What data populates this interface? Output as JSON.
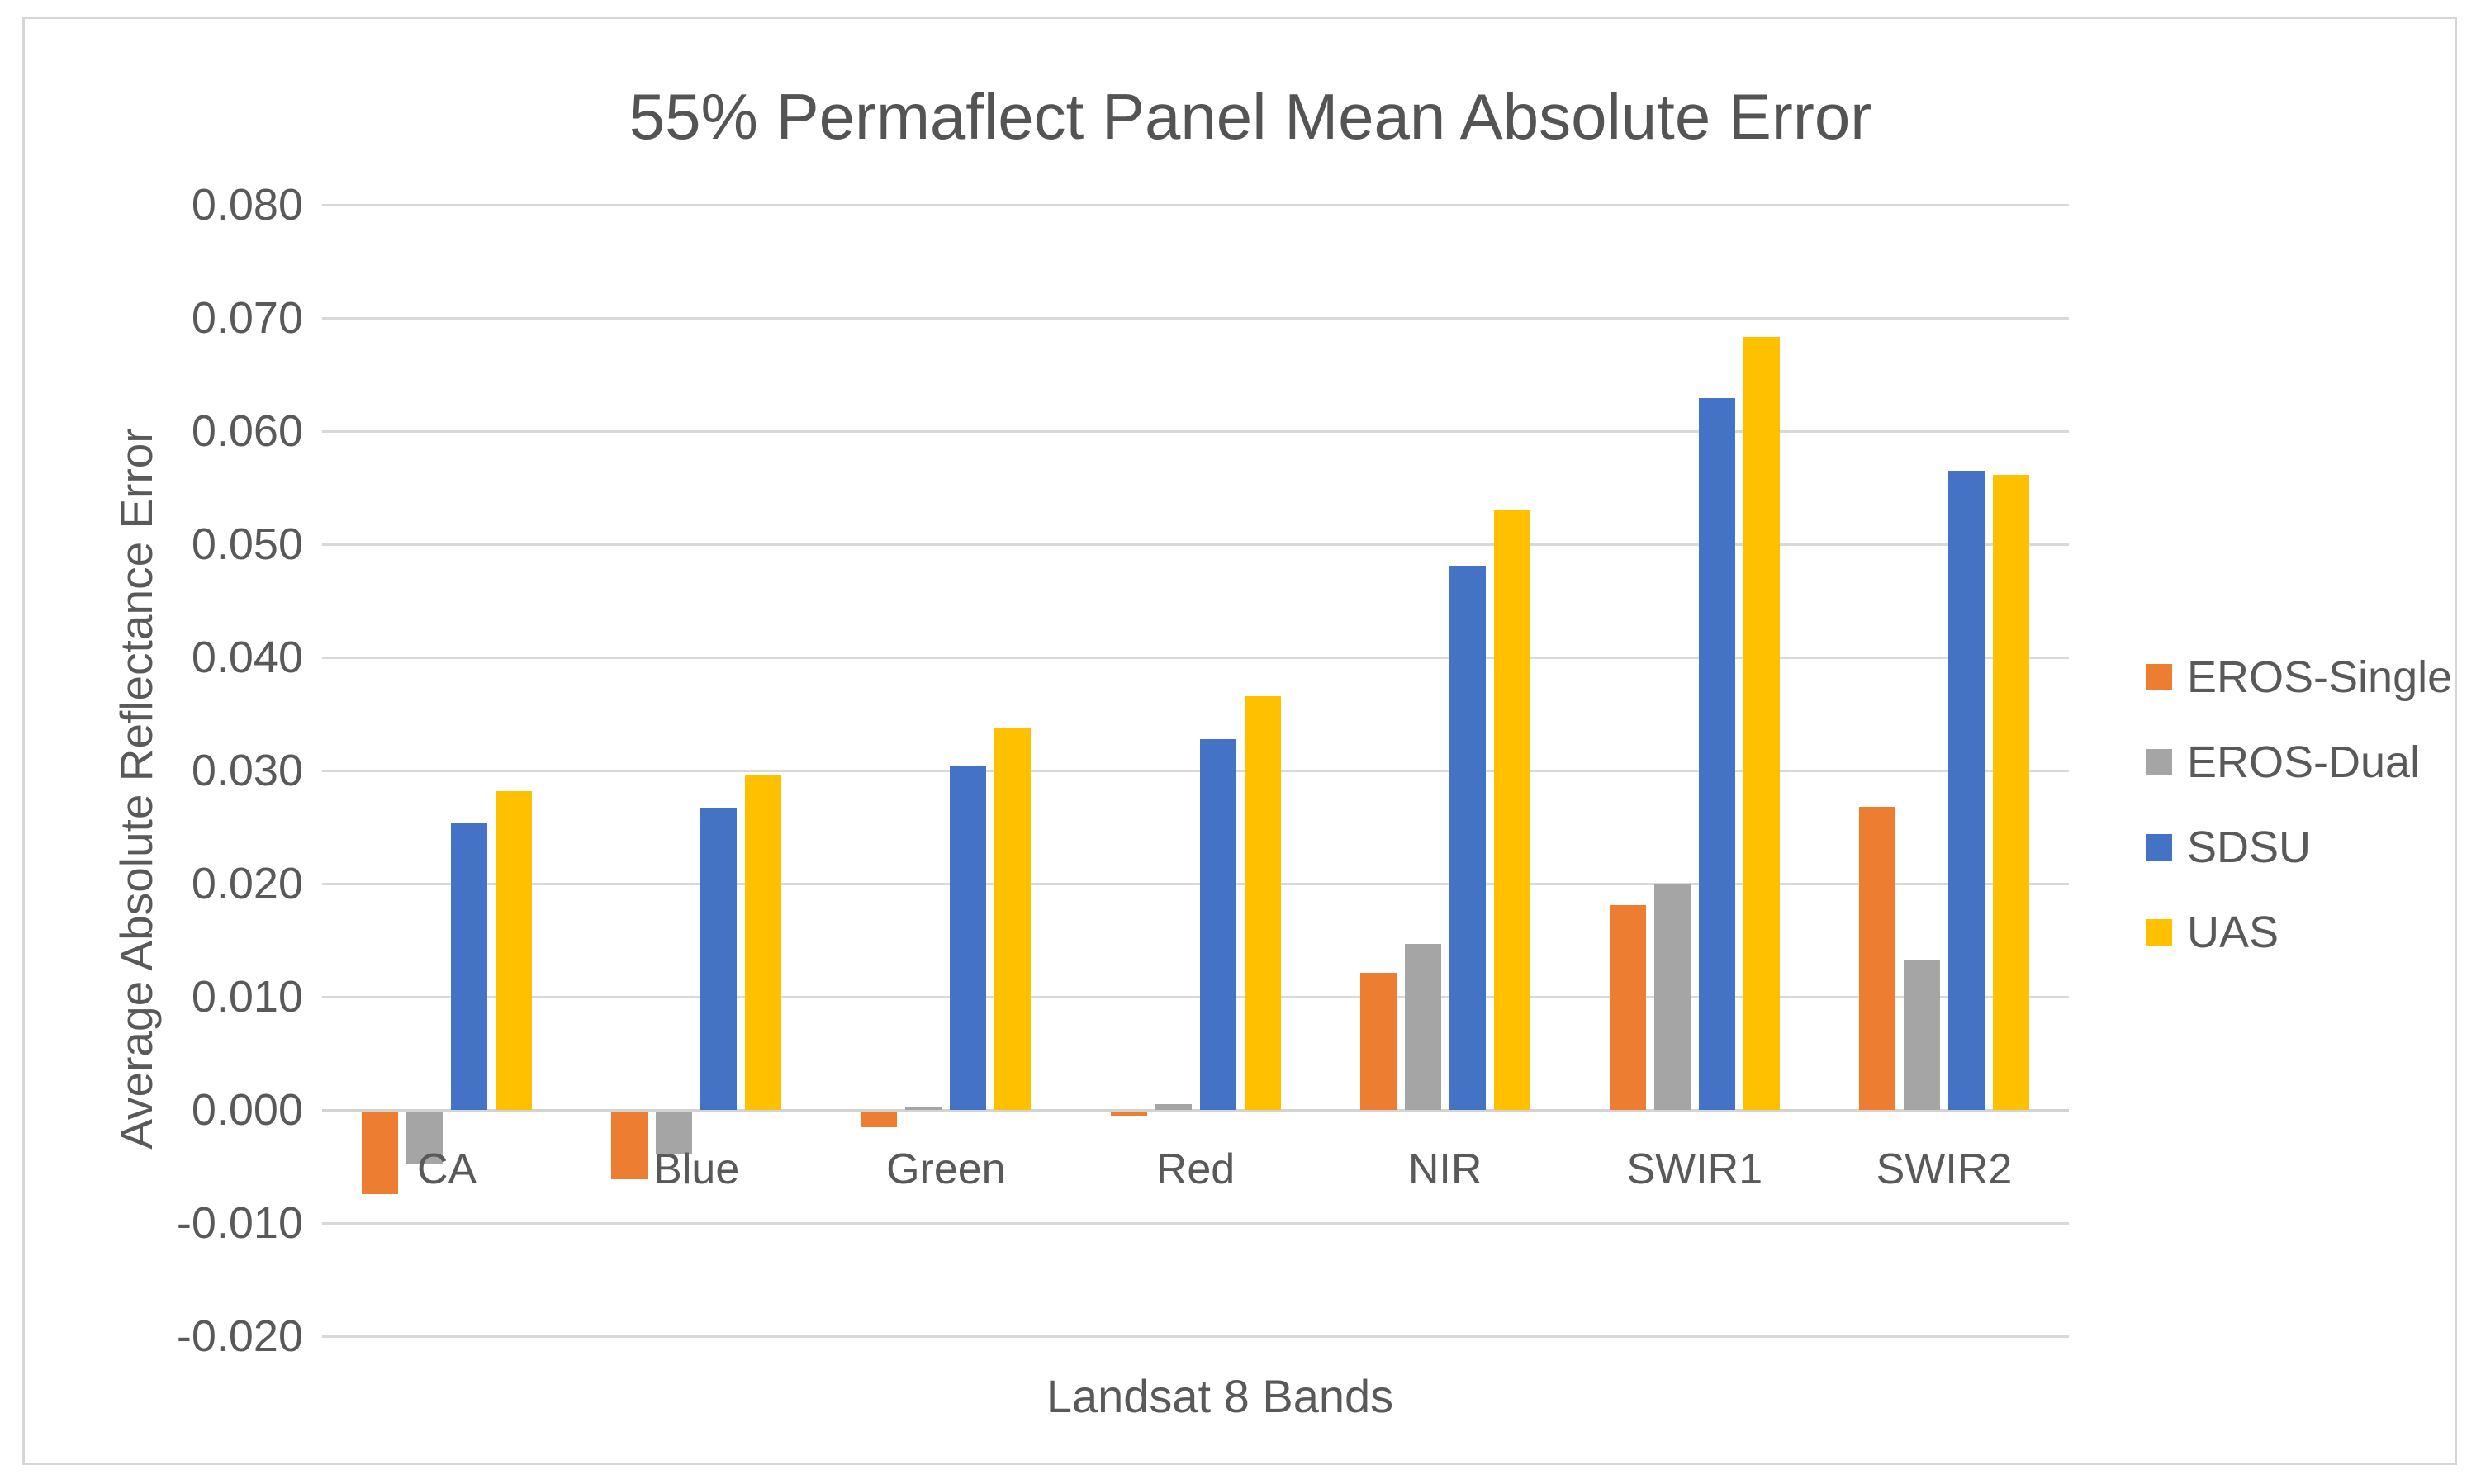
{
  "chart_data": {
    "type": "bar",
    "title": "55% Permaflect Panel Mean Absolute Error",
    "xlabel": "Landsat 8 Bands",
    "ylabel": "Average Absolute Reflectance Error",
    "categories": [
      "CA",
      "Blue",
      "Green",
      "Red",
      "NIR",
      "SWIR1",
      "SWIR2"
    ],
    "series": [
      {
        "name": "EROS-Single",
        "color": "#ED7D31",
        "values": [
          -0.0073,
          -0.006,
          -0.0014,
          -0.0004,
          0.0121,
          0.0181,
          0.0268
        ]
      },
      {
        "name": "EROS-Dual",
        "color": "#A5A5A5",
        "values": [
          -0.0047,
          -0.0037,
          0.0002,
          0.0005,
          0.0147,
          0.0199,
          0.0132
        ]
      },
      {
        "name": "SDSU",
        "color": "#4472C4",
        "values": [
          0.0253,
          0.0267,
          0.0304,
          0.0328,
          0.0481,
          0.0629,
          0.0565
        ]
      },
      {
        "name": "UAS",
        "color": "#FFC000",
        "values": [
          0.0282,
          0.0296,
          0.0337,
          0.0366,
          0.053,
          0.0683,
          0.0561
        ]
      }
    ],
    "y_ticks": [
      "0.080",
      "0.070",
      "0.060",
      "0.050",
      "0.040",
      "0.030",
      "0.020",
      "0.010",
      "0.000",
      "-0.010",
      "-0.020"
    ],
    "ylim": [
      -0.02,
      0.08
    ],
    "grid": true,
    "legend_position": "right",
    "colors": {
      "text": "#595959",
      "gridline": "#D9D9D9",
      "frame_border": "#D6D6D6",
      "background": "#FFFFFF"
    }
  }
}
